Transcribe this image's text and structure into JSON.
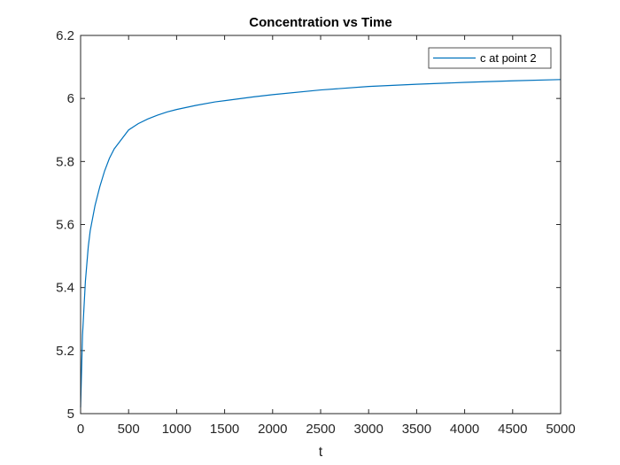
{
  "chart_data": {
    "type": "line",
    "title": "Concentration vs Time",
    "xlabel": "t",
    "ylabel": "",
    "xlim": [
      0,
      5000
    ],
    "ylim": [
      5,
      6.2
    ],
    "xticks": [
      0,
      500,
      1000,
      1500,
      2000,
      2500,
      3000,
      3500,
      4000,
      4500,
      5000
    ],
    "xtick_labels": [
      "0",
      "500",
      "1000",
      "1500",
      "2000",
      "2500",
      "3000",
      "3500",
      "4000",
      "4500",
      "5000"
    ],
    "yticks": [
      5,
      5.2,
      5.4,
      5.6,
      5.8,
      6,
      6.2
    ],
    "ytick_labels": [
      "5",
      "5.2",
      "5.4",
      "5.6",
      "5.8",
      "6",
      "6.2"
    ],
    "grid": false,
    "legend_position": "top-right",
    "series": [
      {
        "name": "c at point 2",
        "color": "#0072BD",
        "x": [
          0,
          20,
          50,
          80,
          100,
          150,
          200,
          250,
          300,
          350,
          400,
          500,
          600,
          700,
          800,
          900,
          1000,
          1200,
          1400,
          1600,
          1800,
          2000,
          2500,
          3000,
          3500,
          4000,
          4500,
          5000
        ],
        "y": [
          5.02,
          5.25,
          5.42,
          5.53,
          5.58,
          5.66,
          5.72,
          5.77,
          5.81,
          5.84,
          5.86,
          5.9,
          5.92,
          5.935,
          5.947,
          5.957,
          5.965,
          5.978,
          5.989,
          5.997,
          6.005,
          6.012,
          6.027,
          6.038,
          6.045,
          6.051,
          6.056,
          6.06
        ]
      }
    ]
  }
}
